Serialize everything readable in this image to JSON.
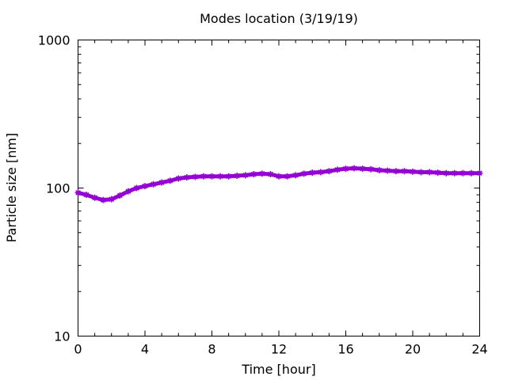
{
  "chart_data": {
    "type": "scatter",
    "title": "Modes location (3/19/19)",
    "xlabel": "Time [hour]",
    "ylabel": "Particle size [nm]",
    "xlim": [
      0,
      24
    ],
    "ylim": [
      10,
      1000
    ],
    "yscale": "log",
    "grid": false,
    "xticks": [
      0,
      4,
      8,
      12,
      16,
      20,
      24
    ],
    "xtick_labels": [
      "0",
      "4",
      "8",
      "12",
      "16",
      "20",
      "24"
    ],
    "yticks": [
      10,
      100,
      1000
    ],
    "ytick_labels": [
      "10",
      "100",
      "1000"
    ],
    "series": [
      {
        "color": "#9400d3",
        "marker": "star",
        "x": [
          0,
          0.5,
          1,
          1.5,
          2,
          2.5,
          3,
          3.5,
          4,
          4.5,
          5,
          5.5,
          6,
          6.5,
          7,
          7.5,
          8,
          8.5,
          9,
          9.5,
          10,
          10.5,
          11,
          11.5,
          12,
          12.5,
          13,
          13.5,
          14,
          14.5,
          15,
          15.5,
          16,
          16.5,
          17,
          17.5,
          18,
          18.5,
          19,
          19.5,
          20,
          20.5,
          21,
          21.5,
          22,
          22.5,
          23,
          23.5,
          24
        ],
        "y": [
          93,
          90,
          86,
          83,
          84,
          89,
          95,
          100,
          103,
          106,
          109,
          112,
          116,
          118,
          119,
          120,
          120,
          120,
          120,
          121,
          122,
          124,
          125,
          124,
          120,
          120,
          122,
          125,
          127,
          128,
          130,
          133,
          135,
          136,
          135,
          134,
          132,
          131,
          130,
          130,
          129,
          128,
          128,
          127,
          126,
          126,
          126,
          126,
          126
        ]
      }
    ]
  }
}
